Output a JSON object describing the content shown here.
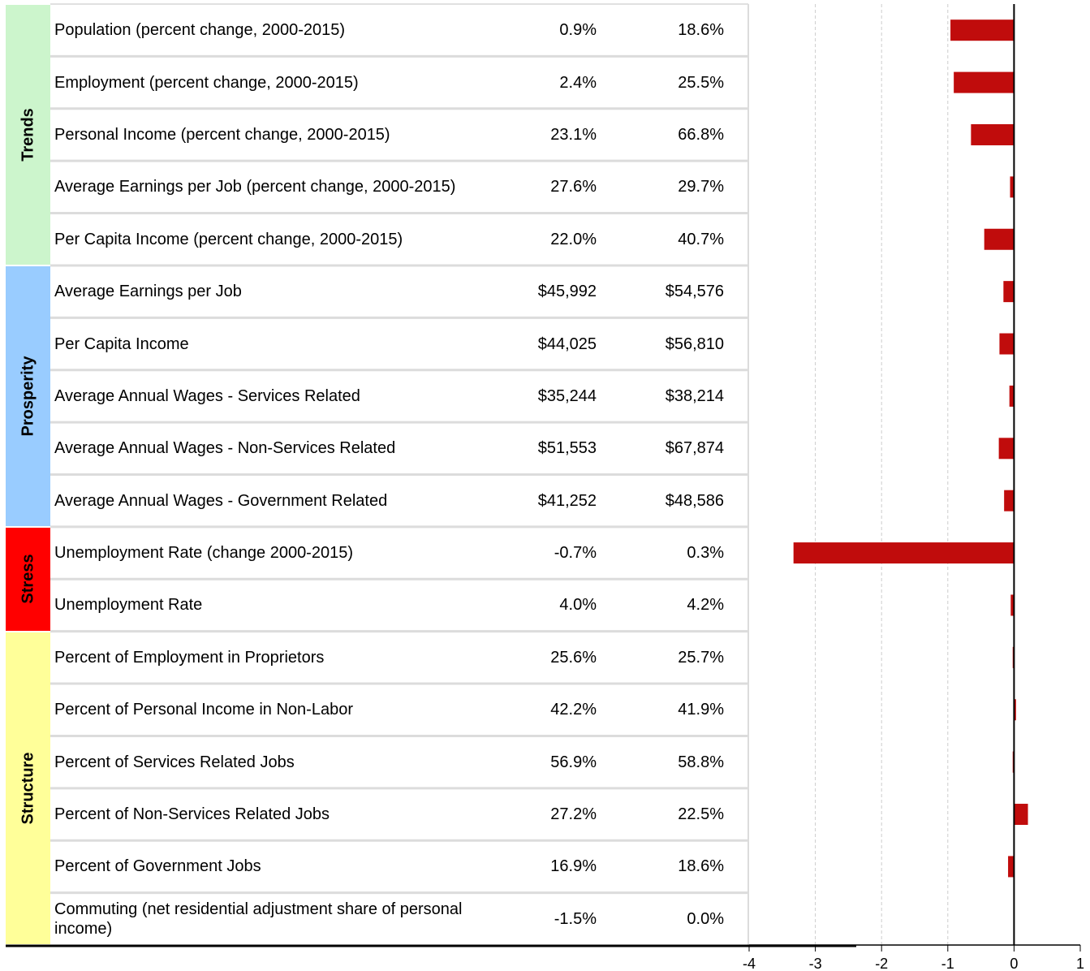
{
  "table": {
    "groups": [
      {
        "name": "Trends",
        "color": "#ccf5cc",
        "rows": [
          {
            "label": "Population (percent change, 2000-2015)",
            "cells": [
              "0.9%",
              "18.6%"
            ]
          },
          {
            "label": "Employment (percent change, 2000-2015)",
            "cells": [
              "2.4%",
              "25.5%"
            ]
          },
          {
            "label": "Personal Income (percent change, 2000-2015)",
            "cells": [
              "23.1%",
              "66.8%"
            ]
          },
          {
            "label": "Average Earnings per Job (percent change, 2000-2015)",
            "cells": [
              "27.6%",
              "29.7%"
            ]
          },
          {
            "label": "Per Capita Income (percent change, 2000-2015)",
            "cells": [
              "22.0%",
              "40.7%"
            ]
          }
        ]
      },
      {
        "name": "Prosperity",
        "color": "#99ccff",
        "rows": [
          {
            "label": "Average Earnings per Job",
            "cells": [
              "$45,992",
              "$54,576"
            ]
          },
          {
            "label": "Per Capita Income",
            "cells": [
              "$44,025",
              "$56,810"
            ]
          },
          {
            "label": "Average Annual Wages - Services Related",
            "cells": [
              "$35,244",
              "$38,214"
            ]
          },
          {
            "label": "Average Annual Wages - Non-Services Related",
            "cells": [
              "$51,553",
              "$67,874"
            ]
          },
          {
            "label": "Average Annual Wages - Government Related",
            "cells": [
              "$41,252",
              "$48,586"
            ]
          }
        ]
      },
      {
        "name": "Stress",
        "color": "#ff0000",
        "rows": [
          {
            "label": "Unemployment Rate (change 2000-2015)",
            "cells": [
              "-0.7%",
              "0.3%"
            ]
          },
          {
            "label": "Unemployment Rate",
            "cells": [
              "4.0%",
              "4.2%"
            ]
          }
        ]
      },
      {
        "name": "Structure",
        "color": "#ffff99",
        "rows": [
          {
            "label": "Percent of Employment in Proprietors",
            "cells": [
              "25.6%",
              "25.7%"
            ]
          },
          {
            "label": "Percent of Personal Income in Non-Labor",
            "cells": [
              "42.2%",
              "41.9%"
            ]
          },
          {
            "label": "Percent of Services Related Jobs",
            "cells": [
              "56.9%",
              "58.8%"
            ]
          },
          {
            "label": "Percent of Non-Services Related Jobs",
            "cells": [
              "27.2%",
              "22.5%"
            ]
          },
          {
            "label": "Percent of Government Jobs",
            "cells": [
              "16.9%",
              "18.6%"
            ]
          },
          {
            "label": "Commuting (net residential adjustment share of personal income)",
            "cells": [
              "-1.5%",
              "0.0%"
            ]
          }
        ]
      }
    ]
  },
  "chart_data": {
    "type": "bar",
    "orientation": "horizontal",
    "color": "#c00c0c",
    "values": [
      -0.96,
      -0.91,
      -0.65,
      -0.06,
      -0.45,
      -0.16,
      -0.22,
      -0.07,
      -0.23,
      -0.15,
      -3.33,
      -0.05,
      -0.02,
      0.03,
      -0.02,
      0.21,
      -0.09,
      null
    ],
    "xlim": [
      -4,
      1
    ],
    "xticks": [
      -4,
      -3,
      -2,
      -1,
      0,
      1
    ],
    "grid": true
  }
}
